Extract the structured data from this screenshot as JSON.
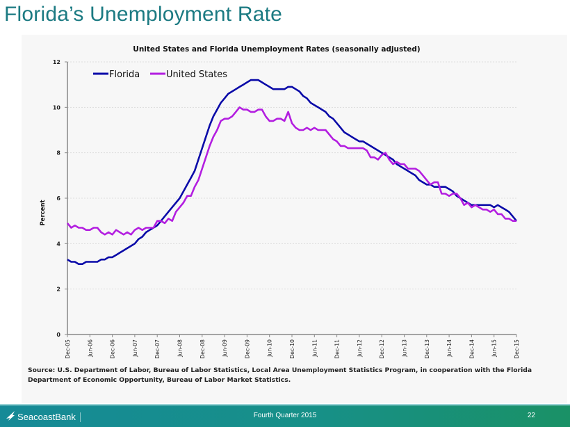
{
  "slide": {
    "title": "Florida’s Unemployment Rate",
    "source_text": "Source:  U.S. Department of Labor, Bureau of Labor Statistics, Local Area Unemployment Statistics Program, in cooperation with the Florida Department of Economic Opportunity, Bureau of Labor Market Statistics."
  },
  "footer": {
    "brand": "SeacoastBank",
    "period": "Fourth Quarter 2015",
    "page_number": "22"
  },
  "colors": {
    "title": "#1b7a82",
    "florida": "#0a0aa8",
    "united_states": "#b31ee0",
    "footer_start": "#168a97",
    "footer_end": "#1a9166"
  },
  "chart_data": {
    "type": "line",
    "title": "United States and Florida Unemployment Rates (seasonally adjusted)",
    "xlabel": "",
    "ylabel": "Percent",
    "ylim": [
      0,
      12
    ],
    "yticks": [
      0,
      2,
      4,
      6,
      8,
      10,
      12
    ],
    "grid": true,
    "legend_position": "top-left",
    "x_start": "Dec-05",
    "x_end": "Dec-15",
    "x_frequency": "monthly",
    "xtick_labels": [
      "Dec-05",
      "Jun-06",
      "Dec-06",
      "Jun-07",
      "Dec-07",
      "Jun-08",
      "Dec-08",
      "Jun-09",
      "Dec-09",
      "Jun-10",
      "Dec-10",
      "Jun-11",
      "Dec-11",
      "Jun-12",
      "Dec-12",
      "Jun-13",
      "Dec-13",
      "Jun-14",
      "Dec-14",
      "Jun-15",
      "Dec-15"
    ],
    "series": [
      {
        "name": "Florida",
        "values": [
          3.3,
          3.2,
          3.2,
          3.1,
          3.1,
          3.2,
          3.2,
          3.2,
          3.2,
          3.3,
          3.3,
          3.4,
          3.4,
          3.5,
          3.6,
          3.7,
          3.8,
          3.9,
          4.0,
          4.2,
          4.3,
          4.5,
          4.6,
          4.7,
          4.8,
          5.0,
          5.2,
          5.4,
          5.6,
          5.8,
          6.0,
          6.3,
          6.6,
          6.9,
          7.2,
          7.7,
          8.2,
          8.7,
          9.2,
          9.6,
          9.9,
          10.2,
          10.4,
          10.6,
          10.7,
          10.8,
          10.9,
          11.0,
          11.1,
          11.2,
          11.2,
          11.2,
          11.1,
          11.0,
          10.9,
          10.8,
          10.8,
          10.8,
          10.8,
          10.9,
          10.9,
          10.8,
          10.7,
          10.5,
          10.4,
          10.2,
          10.1,
          10.0,
          9.9,
          9.8,
          9.6,
          9.5,
          9.3,
          9.1,
          8.9,
          8.8,
          8.7,
          8.6,
          8.5,
          8.5,
          8.4,
          8.3,
          8.2,
          8.1,
          8.0,
          7.9,
          7.8,
          7.7,
          7.5,
          7.4,
          7.3,
          7.2,
          7.1,
          7.0,
          6.8,
          6.7,
          6.6,
          6.6,
          6.5,
          6.5,
          6.5,
          6.5,
          6.4,
          6.3,
          6.1,
          6.0,
          5.9,
          5.8,
          5.7,
          5.7,
          5.7,
          5.7,
          5.7,
          5.7,
          5.6,
          5.7,
          5.6,
          5.5,
          5.4,
          5.2,
          5.0
        ],
        "color": "#0a0aa8"
      },
      {
        "name": "United States",
        "values": [
          4.9,
          4.7,
          4.8,
          4.7,
          4.7,
          4.6,
          4.6,
          4.7,
          4.7,
          4.5,
          4.4,
          4.5,
          4.4,
          4.6,
          4.5,
          4.4,
          4.5,
          4.4,
          4.6,
          4.7,
          4.6,
          4.7,
          4.7,
          4.7,
          5.0,
          5.0,
          4.9,
          5.1,
          5.0,
          5.4,
          5.6,
          5.8,
          6.1,
          6.1,
          6.5,
          6.8,
          7.3,
          7.8,
          8.3,
          8.7,
          9.0,
          9.4,
          9.5,
          9.5,
          9.6,
          9.8,
          10.0,
          9.9,
          9.9,
          9.8,
          9.8,
          9.9,
          9.9,
          9.6,
          9.4,
          9.4,
          9.5,
          9.5,
          9.4,
          9.8,
          9.3,
          9.1,
          9.0,
          9.0,
          9.1,
          9.0,
          9.1,
          9.0,
          9.0,
          9.0,
          8.8,
          8.6,
          8.5,
          8.3,
          8.3,
          8.2,
          8.2,
          8.2,
          8.2,
          8.2,
          8.1,
          7.8,
          7.8,
          7.7,
          7.9,
          8.0,
          7.7,
          7.5,
          7.6,
          7.5,
          7.5,
          7.3,
          7.3,
          7.3,
          7.2,
          7.0,
          6.8,
          6.6,
          6.7,
          6.7,
          6.2,
          6.2,
          6.1,
          6.2,
          6.2,
          6.0,
          5.7,
          5.8,
          5.6,
          5.7,
          5.6,
          5.5,
          5.5,
          5.4,
          5.5,
          5.3,
          5.3,
          5.1,
          5.1,
          5.0,
          5.0
        ],
        "color": "#b31ee0"
      }
    ]
  }
}
